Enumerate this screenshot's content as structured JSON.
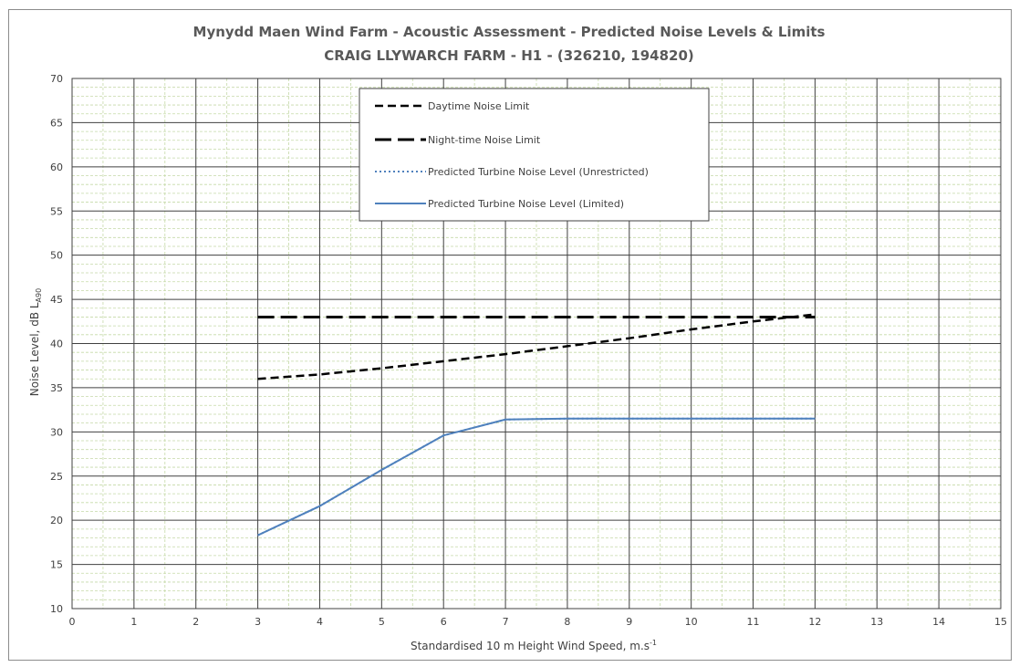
{
  "chart_data": {
    "type": "line",
    "title": "Mynydd Maen Wind Farm - Acoustic Assessment - Predicted Noise Levels & Limits",
    "subtitle": "CRAIG LLYWARCH FARM - H1 - (326210, 194820)",
    "xlabel": "Standardised 10 m Height Wind Speed, m.s",
    "xlabel_sup": "-1",
    "ylabel": "Noise Level, dB L",
    "ylabel_sub": "A90",
    "xlim": [
      0,
      15
    ],
    "ylim": [
      10,
      70
    ],
    "x_ticks": [
      "0",
      "1",
      "2",
      "3",
      "4",
      "5",
      "6",
      "7",
      "8",
      "9",
      "10",
      "11",
      "12",
      "13",
      "14",
      "15"
    ],
    "y_ticks": [
      "10",
      "15",
      "20",
      "25",
      "30",
      "35",
      "40",
      "45",
      "50",
      "55",
      "60",
      "65",
      "70"
    ],
    "grid": true,
    "legend_position": "top-center",
    "series": [
      {
        "name": "Daytime Noise Limit",
        "style": "dashed",
        "color": "#000000",
        "x": [
          3,
          4,
          5,
          6,
          7,
          8,
          9,
          10,
          11,
          12
        ],
        "y": [
          36.0,
          36.5,
          37.2,
          38.0,
          38.8,
          39.7,
          40.6,
          41.6,
          42.5,
          43.3
        ]
      },
      {
        "name": "Night-time Noise Limit",
        "style": "long-dashed",
        "color": "#000000",
        "x": [
          3,
          4,
          5,
          6,
          7,
          8,
          9,
          10,
          11,
          12
        ],
        "y": [
          43,
          43,
          43,
          43,
          43,
          43,
          43,
          43,
          43,
          43
        ]
      },
      {
        "name": "Predicted Turbine Noise Level (Unrestricted)",
        "style": "dotted",
        "color": "#4f81bd",
        "x": [
          3,
          4,
          5,
          6,
          7,
          8,
          9,
          10,
          11,
          12
        ],
        "y": [
          18.3,
          21.6,
          25.7,
          29.6,
          31.4,
          31.5,
          31.5,
          31.5,
          31.5,
          31.5
        ]
      },
      {
        "name": "Predicted Turbine Noise Level (Limited)",
        "style": "solid",
        "color": "#4f81bd",
        "x": [
          3,
          4,
          5,
          6,
          7,
          8,
          9,
          10,
          11,
          12
        ],
        "y": [
          18.3,
          21.6,
          25.7,
          29.6,
          31.4,
          31.5,
          31.5,
          31.5,
          31.5,
          31.5
        ]
      }
    ]
  }
}
